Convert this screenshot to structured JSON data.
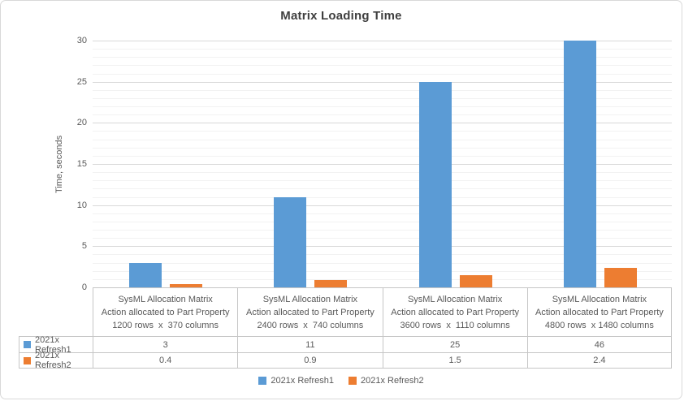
{
  "chart_data": {
    "type": "bar",
    "title": "Matrix Loading Time",
    "xlabel": "",
    "ylabel": "Time, seconds",
    "ylim": [
      0,
      30
    ],
    "y_ticks": [
      0,
      5,
      10,
      15,
      20,
      25,
      30
    ],
    "y_major_unit": 5,
    "y_minor_unit": 1,
    "grid": "on",
    "legend_position": "bottom",
    "categories": [
      [
        "SysML Allocation Matrix",
        "Action allocated to Part Property",
        "1200 rows  x  370 columns"
      ],
      [
        "SysML Allocation Matrix",
        "Action allocated to Part Property",
        "2400 rows  x  740 columns"
      ],
      [
        "SysML Allocation Matrix",
        "Action allocated to Part Property",
        "3600 rows  x  1110 columns"
      ],
      [
        "SysML Allocation Matrix",
        "Action allocated to Part Property",
        "4800 rows  x 1480 columns"
      ]
    ],
    "series": [
      {
        "name": "2021x Refresh1",
        "color": "#5B9BD5",
        "values": [
          3,
          11,
          25,
          46
        ]
      },
      {
        "name": "2021x Refresh2",
        "color": "#ED7D31",
        "values": [
          0.4,
          0.9,
          1.5,
          2.4
        ]
      }
    ],
    "data_table": {
      "shown": true,
      "cell_values": [
        [
          "3",
          "11",
          "25",
          "46"
        ],
        [
          "0.4",
          "0.9",
          "1.5",
          "2.4"
        ]
      ]
    }
  },
  "colors": {
    "series1": "#5B9BD5",
    "series2": "#ED7D31",
    "grid_major": "#D9D9D9",
    "grid_minor": "#F2F2F2",
    "table_border": "#C6C6C6",
    "chart_border": "#D9D9D9",
    "label_text": "#595959",
    "title_text": "#3F3F3F"
  }
}
